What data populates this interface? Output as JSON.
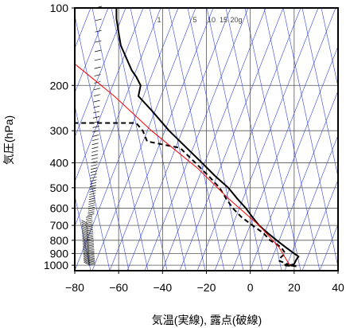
{
  "chart_data": {
    "type": "line",
    "title": "",
    "xlabel": "気温(実線), 露点(破線)",
    "ylabel": "気圧(hPa)",
    "xlim": [
      -80,
      40
    ],
    "ylim": [
      1050,
      100
    ],
    "y_scale": "log",
    "grid": true,
    "x_ticks": [
      "−80",
      "−60",
      "−40",
      "−20",
      "0",
      "20",
      "40"
    ],
    "y_ticks": [
      {
        "p": 100,
        "label": "100"
      },
      {
        "p": 200,
        "label": "200"
      },
      {
        "p": 300,
        "label": "300"
      },
      {
        "p": 400,
        "label": "400"
      },
      {
        "p": 500,
        "label": "500"
      },
      {
        "p": 600,
        "label": "600"
      },
      {
        "p": 700,
        "label": "700"
      },
      {
        "p": 800,
        "label": "800"
      },
      {
        "p": 900,
        "label": "900"
      },
      {
        "p": 1000,
        "label": "1000"
      }
    ],
    "mixing_ratio_labels": [
      "1",
      "5",
      "10",
      "15",
      "20g"
    ],
    "series": [
      {
        "style": "solid",
        "color": "#000000",
        "points": [
          [
            21,
            1010
          ],
          [
            18,
            1000
          ],
          [
            20,
            990
          ],
          [
            21,
            950
          ],
          [
            22,
            925
          ],
          [
            20,
            900
          ],
          [
            16,
            850
          ],
          [
            12,
            800
          ],
          [
            8,
            750
          ],
          [
            4,
            700
          ],
          [
            1,
            650
          ],
          [
            -2,
            600
          ],
          [
            -6,
            550
          ],
          [
            -10,
            500
          ],
          [
            -16,
            450
          ],
          [
            -22,
            400
          ],
          [
            -29,
            350
          ],
          [
            -37,
            300
          ],
          [
            -45,
            250
          ],
          [
            -51,
            220
          ],
          [
            -50,
            200
          ],
          [
            -52,
            185
          ],
          [
            -54,
            175
          ],
          [
            -56,
            160
          ],
          [
            -59,
            140
          ],
          [
            -60,
            125
          ],
          [
            -61,
            110
          ],
          [
            -61,
            100
          ]
        ]
      },
      {
        "style": "dashed",
        "color": "#000000",
        "points": [
          [
            18,
            1005
          ],
          [
            15,
            1000
          ],
          [
            17,
            990
          ],
          [
            13,
            960
          ],
          [
            14,
            930
          ],
          [
            16,
            900
          ],
          [
            14,
            850
          ],
          [
            9,
            800
          ],
          [
            6,
            750
          ],
          [
            1,
            700
          ],
          [
            -4,
            650
          ],
          [
            -8,
            600
          ],
          [
            -11,
            550
          ],
          [
            -14,
            500
          ],
          [
            -19,
            450
          ],
          [
            -25,
            400
          ],
          [
            -32,
            350
          ],
          [
            -47,
            330
          ],
          [
            -49,
            300
          ],
          [
            -52,
            280
          ],
          [
            -80,
            280
          ]
        ]
      },
      {
        "style": "solid",
        "color": "#ff0000",
        "points": [
          [
            18,
            1000
          ],
          [
            13,
            850
          ],
          [
            4,
            700
          ],
          [
            -10,
            550
          ],
          [
            -24,
            420
          ],
          [
            -45,
            300
          ],
          [
            -62,
            220
          ],
          [
            -80,
            165
          ]
        ]
      }
    ]
  }
}
